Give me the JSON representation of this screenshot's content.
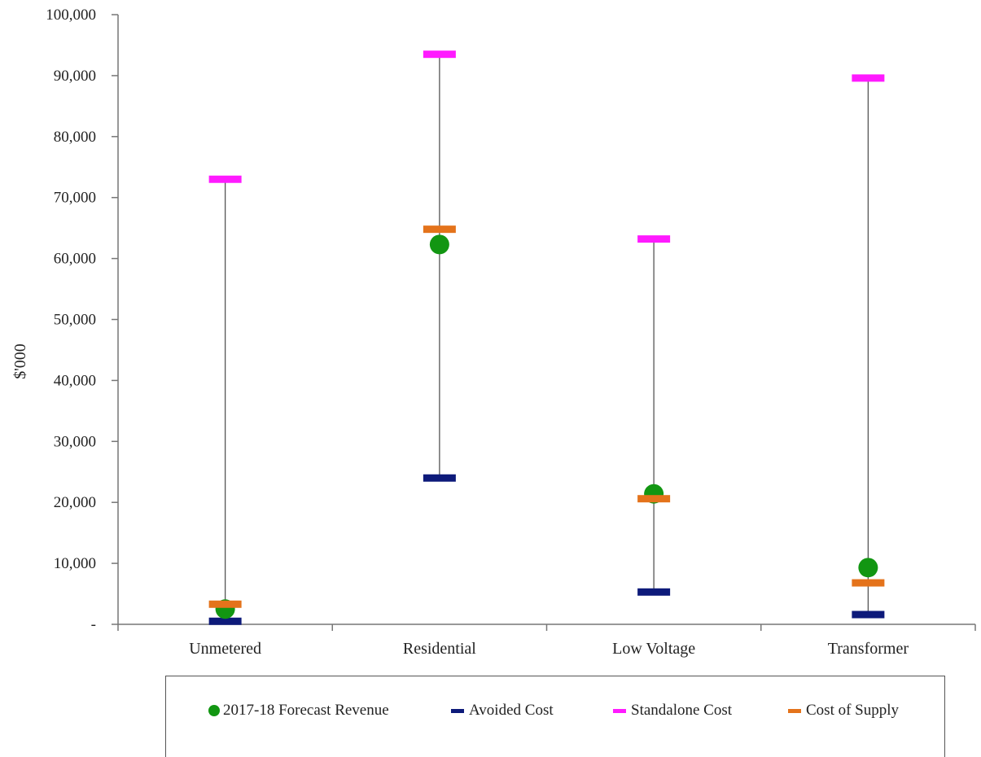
{
  "chart_data": {
    "type": "scatter",
    "ylabel": "$'000",
    "xlabel": "",
    "ylim": [
      0,
      100000
    ],
    "yticks": [
      "-",
      "10,000",
      "20,000",
      "30,000",
      "40,000",
      "50,000",
      "60,000",
      "70,000",
      "80,000",
      "90,000",
      "100,000"
    ],
    "categories": [
      "Unmetered",
      "Residential",
      "Low Voltage",
      "Transformer"
    ],
    "series": [
      {
        "name": "2017-18 Forecast Revenue",
        "marker": "circle",
        "color": "#129612",
        "values": [
          2500,
          62300,
          21400,
          9300
        ]
      },
      {
        "name": "Avoided Cost",
        "marker": "dash",
        "color": "#0d1a7a",
        "values": [
          500,
          24000,
          5300,
          1600
        ]
      },
      {
        "name": "Standalone Cost",
        "marker": "dash",
        "color": "#ff1aff",
        "values": [
          73000,
          93500,
          63200,
          89600
        ]
      },
      {
        "name": "Cost of Supply",
        "marker": "dash",
        "color": "#e4731b",
        "values": [
          3300,
          64800,
          20600,
          6800
        ]
      }
    ],
    "range_lines": {
      "from": "Avoided Cost",
      "to": "Standalone Cost",
      "color": "#555555"
    },
    "grid": false,
    "legend_position": "bottom"
  },
  "legend": {
    "items": [
      {
        "label": "2017-18 Forecast Revenue"
      },
      {
        "label": "Avoided Cost"
      },
      {
        "label": "Standalone Cost"
      },
      {
        "label": "Cost of Supply"
      }
    ]
  }
}
